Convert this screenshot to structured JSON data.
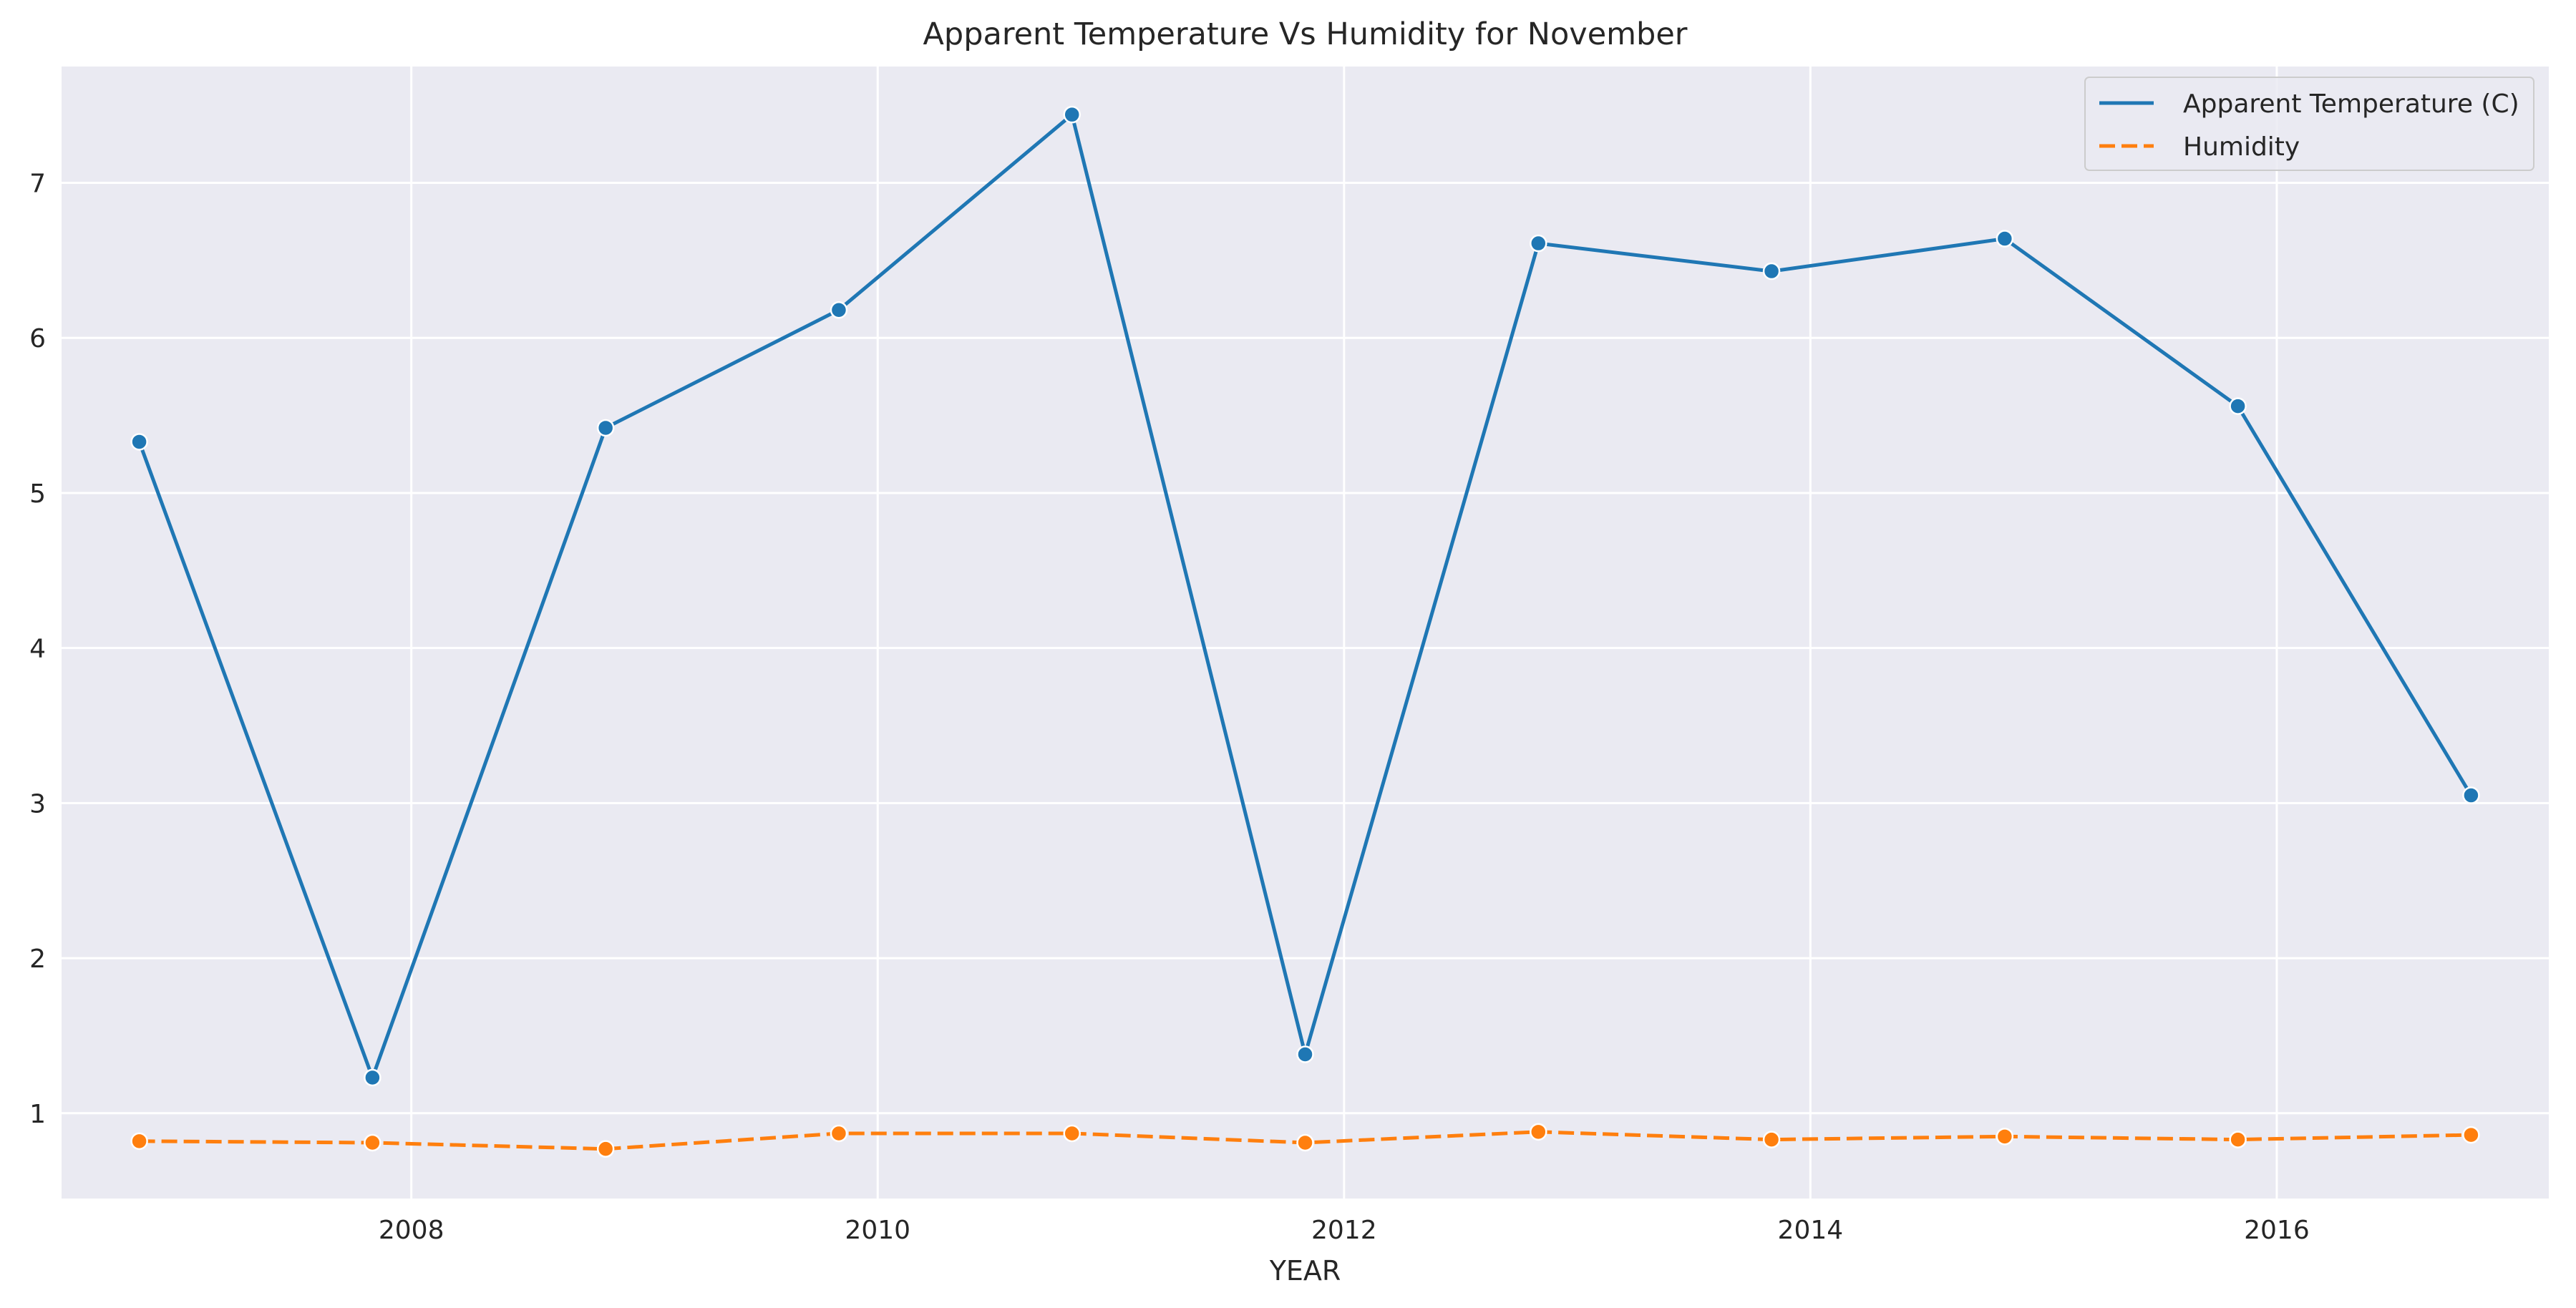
{
  "chart_data": {
    "type": "line",
    "title": "Apparent Temperature Vs Humidity for November",
    "xlabel": "YEAR",
    "ylabel": "",
    "x": [
      "2006-11",
      "2007-11",
      "2008-11",
      "2009-11",
      "2010-11",
      "2011-11",
      "2012-11",
      "2013-11",
      "2014-11",
      "2015-11",
      "2016-11"
    ],
    "xlim": [
      "2006-07",
      "2017-03"
    ],
    "ylim": [
      0.45,
      7.75
    ],
    "x_ticks": [
      "2008",
      "2010",
      "2012",
      "2014",
      "2016"
    ],
    "y_ticks": [
      "1",
      "2",
      "3",
      "4",
      "5",
      "6",
      "7"
    ],
    "grid": true,
    "legend_position": "top-right",
    "series": [
      {
        "name": "Apparent Temperature (C)",
        "color": "#1f77b4",
        "line_style": "solid",
        "marker": "circle",
        "values": [
          5.33,
          1.23,
          5.42,
          6.18,
          7.44,
          1.38,
          6.61,
          6.43,
          6.64,
          5.56,
          3.05
        ]
      },
      {
        "name": "Humidity",
        "color": "#ff7f0e",
        "line_style": "dashed",
        "marker": "circle",
        "values": [
          0.82,
          0.81,
          0.77,
          0.87,
          0.87,
          0.81,
          0.88,
          0.83,
          0.85,
          0.83,
          0.86
        ]
      }
    ],
    "colors": {
      "plot_background": "#eaeaf2",
      "grid": "#ffffff",
      "text": "#262626"
    }
  }
}
